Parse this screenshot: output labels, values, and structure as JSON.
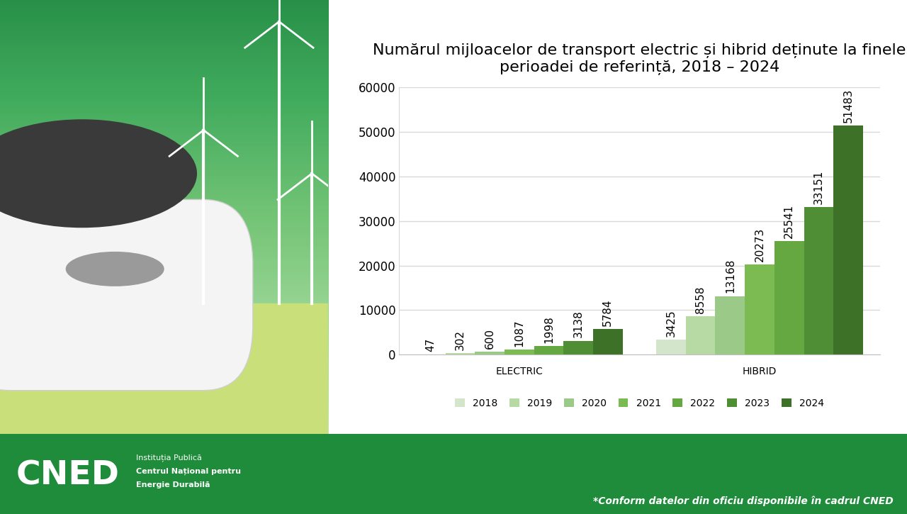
{
  "chart_data": {
    "type": "bar",
    "title": "Numărul mijloacelor de transport electric și hibrid deținute la finele perioadei de referință, 2018 – 2024",
    "categories": [
      "ELECTRIC",
      "HIBRID"
    ],
    "series": [
      {
        "name": "2018",
        "color": "#d3e6cc",
        "values": [
          47,
          3425
        ]
      },
      {
        "name": "2019",
        "color": "#b7daa5",
        "values": [
          302,
          8558
        ]
      },
      {
        "name": "2020",
        "color": "#9bc987",
        "values": [
          600,
          13168
        ]
      },
      {
        "name": "2021",
        "color": "#7cba52",
        "values": [
          1087,
          20273
        ]
      },
      {
        "name": "2022",
        "color": "#65a842",
        "values": [
          1998,
          25541
        ]
      },
      {
        "name": "2023",
        "color": "#4f8e35",
        "values": [
          3138,
          33151
        ]
      },
      {
        "name": "2024",
        "color": "#3c7127",
        "values": [
          5784,
          51483
        ]
      }
    ],
    "ylim": [
      0,
      60000
    ],
    "yticks": [
      0,
      10000,
      20000,
      30000,
      40000,
      50000,
      60000
    ],
    "grid": true,
    "legend": "bottom",
    "data_labels": true
  },
  "footer": {
    "logo": "CNED",
    "institution": [
      "Instituția Publică",
      "Centrul Național pentru",
      "Energie Durabilă"
    ],
    "note": "*Conform datelor din oficiu disponibile în cadrul CNED"
  }
}
